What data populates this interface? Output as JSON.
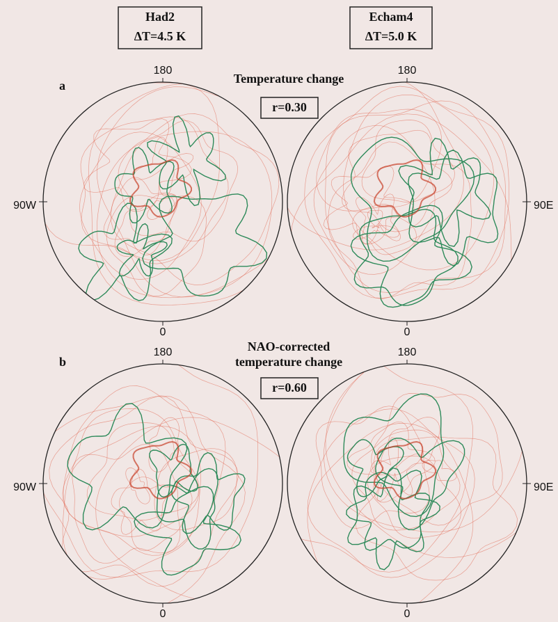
{
  "headers": [
    {
      "model": "Had2",
      "delta": "ΔT=4.5  K"
    },
    {
      "model": "Echam4",
      "delta": "ΔT=5.0  K"
    }
  ],
  "rows": [
    {
      "label": "a",
      "title": [
        "Temperature change"
      ],
      "r": "r=0.30"
    },
    {
      "label": "b",
      "title": [
        "NAO-corrected",
        "temperature change"
      ],
      "r": "r=0.60"
    }
  ],
  "maps": [
    {
      "top": "180",
      "bottom": "0",
      "side": "90W"
    },
    {
      "top": "180",
      "bottom": "0",
      "side": "90E"
    },
    {
      "top": "180",
      "bottom": "0",
      "side": "90W"
    },
    {
      "top": "180",
      "bottom": "0",
      "side": "90E"
    }
  ]
}
